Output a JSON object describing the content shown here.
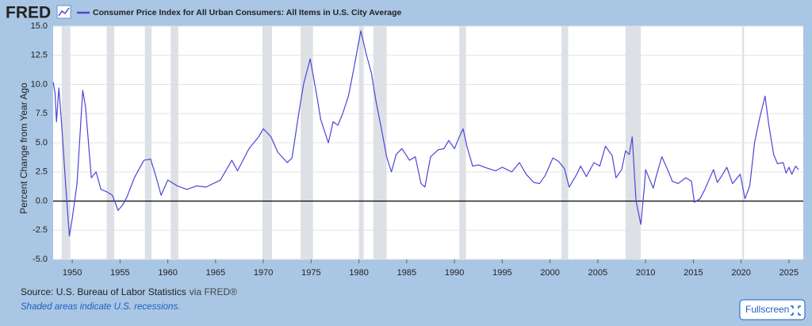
{
  "logo": "FRED",
  "chart_data": {
    "type": "line",
    "title": "Consumer Price Index for All Urban Consumers: All Items in U.S. City Average",
    "y_label": "Percent Change from Year Ago",
    "x": [
      1948.0,
      1948.2,
      1948.35,
      1948.6,
      1948.9,
      1949.3,
      1949.7,
      1950.0,
      1950.5,
      1951.1,
      1951.4,
      1952.0,
      1952.5,
      1953.0,
      1953.6,
      1954.2,
      1954.8,
      1955.3,
      1955.7,
      1956.5,
      1957.5,
      1958.2,
      1958.8,
      1959.3,
      1960.0,
      1961.0,
      1962.0,
      1963.0,
      1964.0,
      1965.5,
      1966.7,
      1967.3,
      1968.5,
      1969.5,
      1970.0,
      1970.8,
      1971.5,
      1972.5,
      1973.0,
      1973.7,
      1974.2,
      1974.9,
      1975.6,
      1976.0,
      1976.8,
      1977.3,
      1977.8,
      1978.3,
      1978.9,
      1979.5,
      1979.9,
      1980.2,
      1980.8,
      1981.3,
      1981.8,
      1982.4,
      1982.9,
      1983.4,
      1983.9,
      1984.5,
      1985.3,
      1985.9,
      1986.5,
      1986.9,
      1987.5,
      1988.3,
      1988.9,
      1989.4,
      1990.0,
      1990.5,
      1990.9,
      1991.3,
      1991.9,
      1992.5,
      1993.5,
      1994.3,
      1995.0,
      1996.0,
      1996.8,
      1997.5,
      1998.3,
      1998.9,
      1999.5,
      2000.3,
      2000.9,
      2001.5,
      2002.0,
      2002.8,
      2003.2,
      2003.8,
      2004.6,
      2005.2,
      2005.8,
      2006.5,
      2006.9,
      2007.5,
      2007.9,
      2008.3,
      2008.6,
      2009.0,
      2009.5,
      2009.9,
      2010.0,
      2010.8,
      2011.1,
      2011.7,
      2012.3,
      2012.8,
      2013.4,
      2014.2,
      2014.8,
      2015.1,
      2015.7,
      2016.2,
      2017.1,
      2017.5,
      2018.0,
      2018.5,
      2019.1,
      2019.9,
      2020.4,
      2020.9,
      2021.4,
      2021.9,
      2022.5,
      2022.9,
      2023.4,
      2023.8,
      2024.4,
      2024.7,
      2025.0,
      2025.3,
      2025.7,
      2026.0
    ],
    "series": [
      {
        "name": "Consumer Price Index for All Urban Consumers: All Items in U.S. City Average",
        "color": "#4f44d6",
        "values": [
          10.2,
          9.3,
          6.8,
          9.7,
          6.5,
          1.5,
          -3.0,
          -1.5,
          1.5,
          9.5,
          8.0,
          2.0,
          2.5,
          1.0,
          0.8,
          0.5,
          -0.8,
          -0.3,
          0.3,
          2.0,
          3.5,
          3.6,
          2.0,
          0.5,
          1.8,
          1.3,
          1.0,
          1.3,
          1.2,
          1.8,
          3.5,
          2.6,
          4.5,
          5.5,
          6.2,
          5.5,
          4.2,
          3.3,
          3.7,
          7.5,
          10.0,
          12.2,
          9.0,
          7.0,
          5.0,
          6.8,
          6.5,
          7.5,
          9.0,
          11.5,
          13.3,
          14.6,
          12.5,
          11.0,
          8.5,
          6.0,
          3.8,
          2.5,
          4.0,
          4.5,
          3.5,
          3.8,
          1.5,
          1.2,
          3.8,
          4.4,
          4.5,
          5.2,
          4.5,
          5.5,
          6.2,
          4.7,
          3.0,
          3.1,
          2.8,
          2.6,
          2.9,
          2.5,
          3.3,
          2.3,
          1.6,
          1.5,
          2.2,
          3.7,
          3.4,
          2.8,
          1.2,
          2.3,
          3.0,
          2.1,
          3.3,
          3.0,
          4.7,
          3.9,
          2.0,
          2.7,
          4.3,
          4.0,
          5.5,
          0.0,
          -2.0,
          1.5,
          2.7,
          1.1,
          2.1,
          3.8,
          2.7,
          1.7,
          1.5,
          2.0,
          1.7,
          -0.1,
          0.2,
          1.0,
          2.7,
          1.6,
          2.2,
          2.9,
          1.5,
          2.3,
          0.2,
          1.3,
          5.0,
          7.0,
          9.0,
          6.5,
          4.0,
          3.2,
          3.3,
          2.4,
          2.9,
          2.3,
          3.0,
          2.7
        ]
      }
    ],
    "recessions": [
      [
        1948.9,
        1949.8
      ],
      [
        1953.6,
        1954.4
      ],
      [
        1957.6,
        1958.3
      ],
      [
        1960.3,
        1961.1
      ],
      [
        1969.9,
        1970.9
      ],
      [
        1973.9,
        1975.2
      ],
      [
        1980.0,
        1980.5
      ],
      [
        1981.5,
        1982.9
      ],
      [
        1990.5,
        1991.2
      ],
      [
        2001.2,
        2001.9
      ],
      [
        2007.9,
        2009.5
      ],
      [
        2020.1,
        2020.3
      ]
    ],
    "xlim": [
      1948.0,
      2026.5
    ],
    "ylim": [
      -5,
      15
    ],
    "xticks": [
      1950,
      1955,
      1960,
      1965,
      1970,
      1975,
      1980,
      1985,
      1990,
      1995,
      2000,
      2005,
      2010,
      2015,
      2020,
      2025
    ],
    "yticks": [
      {
        "value": -5,
        "label": "-5.0"
      },
      -2.5,
      {
        "value": 0,
        "label": "0.0"
      },
      2.5,
      {
        "value": 5,
        "label": "5.0"
      },
      7.5,
      {
        "value": 10,
        "label": "10.0"
      },
      12.5,
      {
        "value": 15,
        "label": "15.0"
      }
    ],
    "grid": true,
    "source": "Source: U.S. Bureau of Labor Statistics",
    "source_via": "via FRED®",
    "note": "Shaded areas indicate U.S. recessions."
  },
  "button": "Fullscreen"
}
